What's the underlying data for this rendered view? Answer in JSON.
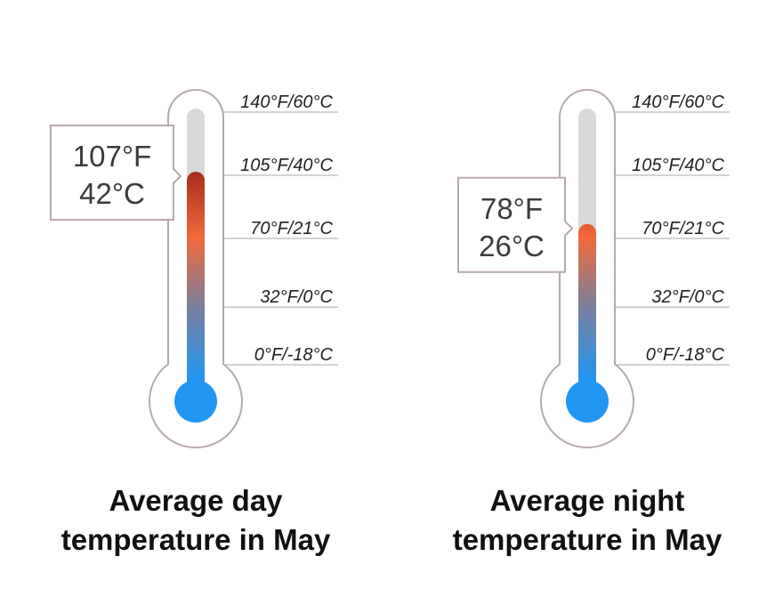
{
  "chart_data": {
    "type": "thermometer",
    "scale": {
      "unit_primary": "°F",
      "ylim": [
        -9,
        140
      ],
      "ticks": [
        {
          "value": 140,
          "label": "140°F/60°C"
        },
        {
          "value": 105,
          "label": "105°F/40°C"
        },
        {
          "value": 70,
          "label": "70°F/21°C"
        },
        {
          "value": 32,
          "label": "32°F/0°C"
        },
        {
          "value": 0,
          "label": "0°F/-18°C"
        }
      ]
    },
    "thermometers": [
      {
        "title_lines": [
          "Average day",
          "temperature in May"
        ],
        "value_f": 107,
        "callout_lines": [
          "107°F",
          "42°C"
        ]
      },
      {
        "title_lines": [
          "Average night",
          "temperature in May"
        ],
        "value_f": 78,
        "callout_lines": [
          "78°F",
          "26°C"
        ]
      }
    ],
    "colors": {
      "outline": "#b9a8a8",
      "track": "#d9d9d9",
      "bulb": "#2196f3",
      "gradient_stops": [
        {
          "value": -9,
          "color": "#2196f3"
        },
        {
          "value": 32,
          "color": "#7a7f9e"
        },
        {
          "value": 70,
          "color": "#f26a3a"
        },
        {
          "value": 107,
          "color": "#a62d1a"
        }
      ],
      "grid": "#aaaaaa"
    }
  }
}
